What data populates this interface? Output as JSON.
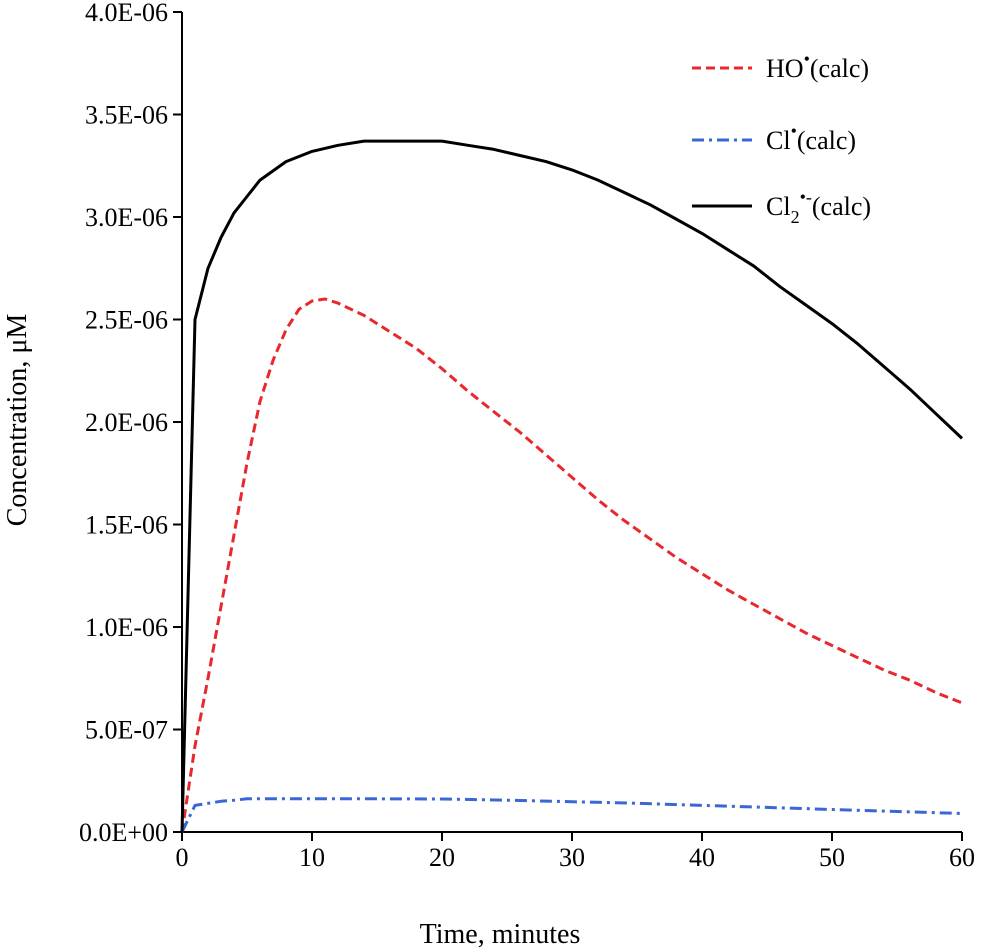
{
  "chart_data": {
    "type": "line",
    "xlabel": "Time, minutes",
    "ylabel": "Concentration, μM",
    "xlim": [
      0,
      60
    ],
    "ylim": [
      0,
      4e-06
    ],
    "x_ticks": [
      0,
      10,
      20,
      30,
      40,
      50,
      60
    ],
    "x_tick_labels": [
      "0",
      "10",
      "20",
      "30",
      "40",
      "50",
      "60"
    ],
    "y_ticks": [
      0,
      5e-07,
      1e-06,
      1.5e-06,
      2e-06,
      2.5e-06,
      3e-06,
      3.5e-06,
      4e-06
    ],
    "y_tick_labels": [
      "0.0E+00",
      "5.0E-07",
      "1.0E-06",
      "1.5E-06",
      "2.0E-06",
      "2.5E-06",
      "3.0E-06",
      "3.5E-06",
      "4.0E-06"
    ],
    "grid": false,
    "legend_position": "top-right",
    "series": [
      {
        "name": "HO•(calc)",
        "legend": {
          "base": "HO",
          "sup": "•",
          "tail": "(calc)"
        },
        "color": "#e8282d",
        "dash": "dashed",
        "x": [
          0,
          1,
          2,
          3,
          4,
          5,
          6,
          7,
          8,
          9,
          10,
          11,
          12,
          14,
          16,
          18,
          20,
          22,
          24,
          26,
          28,
          30,
          32,
          34,
          36,
          38,
          40,
          42,
          44,
          46,
          48,
          50,
          52,
          54,
          56,
          58,
          60
        ],
        "y": [
          0,
          4.2e-07,
          7.5e-07,
          1.1e-06,
          1.45e-06,
          1.8e-06,
          2.1e-06,
          2.3e-06,
          2.45e-06,
          2.55e-06,
          2.59e-06,
          2.6e-06,
          2.58e-06,
          2.52e-06,
          2.44e-06,
          2.36e-06,
          2.26e-06,
          2.15e-06,
          2.05e-06,
          1.95e-06,
          1.84e-06,
          1.73e-06,
          1.62e-06,
          1.52e-06,
          1.43e-06,
          1.34e-06,
          1.26e-06,
          1.18e-06,
          1.11e-06,
          1.04e-06,
          9.7e-07,
          9.1e-07,
          8.5e-07,
          7.9e-07,
          7.4e-07,
          6.8e-07,
          6.3e-07
        ]
      },
      {
        "name": "Cl•(calc)",
        "legend": {
          "base": "Cl",
          "sup": "•",
          "tail": "(calc)"
        },
        "color": "#3a67d6",
        "dash": "dashdot",
        "x": [
          0,
          1,
          2,
          3,
          4,
          5,
          10,
          15,
          20,
          25,
          30,
          35,
          40,
          45,
          50,
          55,
          60
        ],
        "y": [
          0,
          1.3e-07,
          1.4e-07,
          1.5e-07,
          1.55e-07,
          1.62e-07,
          1.62e-07,
          1.62e-07,
          1.61e-07,
          1.55e-07,
          1.48e-07,
          1.4e-07,
          1.3e-07,
          1.2e-07,
          1.1e-07,
          1e-07,
          9e-08
        ]
      },
      {
        "name": "Cl2•-(calc)",
        "legend": {
          "base": "Cl",
          "sub": "2",
          "sup": "•-",
          "tail": "(calc)"
        },
        "color": "#000000",
        "dash": "solid",
        "x": [
          0,
          1,
          2,
          3,
          4,
          5,
          6,
          8,
          10,
          12,
          14,
          16,
          18,
          20,
          22,
          24,
          26,
          28,
          30,
          32,
          34,
          36,
          38,
          40,
          42,
          44,
          46,
          48,
          50,
          52,
          54,
          56,
          58,
          60
        ],
        "y": [
          0,
          2.5e-06,
          2.75e-06,
          2.9e-06,
          3.02e-06,
          3.1e-06,
          3.18e-06,
          3.27e-06,
          3.32e-06,
          3.35e-06,
          3.37e-06,
          3.37e-06,
          3.37e-06,
          3.37e-06,
          3.35e-06,
          3.33e-06,
          3.3e-06,
          3.27e-06,
          3.23e-06,
          3.18e-06,
          3.12e-06,
          3.06e-06,
          2.99e-06,
          2.92e-06,
          2.84e-06,
          2.76e-06,
          2.66e-06,
          2.57e-06,
          2.48e-06,
          2.38e-06,
          2.27e-06,
          2.16e-06,
          2.04e-06,
          1.92e-06
        ]
      }
    ]
  }
}
